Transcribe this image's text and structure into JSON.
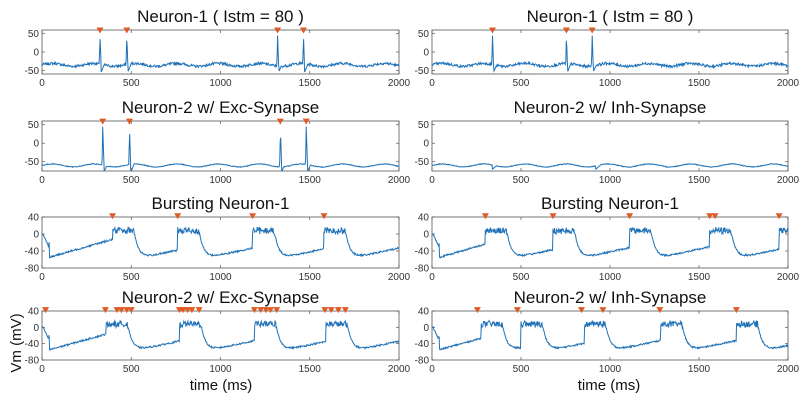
{
  "figure": {
    "ylabel": "Vm (mV)",
    "xlabel_left": "time (ms)",
    "xlabel_right": "time (ms)"
  },
  "colors": {
    "trace": "#1f72b8",
    "marker": "#e05a23",
    "axis": "#555555"
  },
  "chart_data": [
    {
      "type": "line",
      "title": "Neuron-1 ( Istm = 80 )",
      "xlim": [
        0,
        2000
      ],
      "ylim": [
        -60,
        60
      ],
      "xticks": [
        "0",
        "500",
        "1000",
        "1500",
        "2000"
      ],
      "yticks": [
        "50",
        "0",
        "-50"
      ],
      "ytick_values": [
        50,
        0,
        -50
      ],
      "baseline": -35,
      "spike_peak": 45,
      "spike_times": [
        325,
        475,
        1320,
        1465
      ]
    },
    {
      "type": "line",
      "title": "Neuron-1 ( Istm = 80 )",
      "xlim": [
        0,
        2000
      ],
      "ylim": [
        -60,
        60
      ],
      "xticks": [
        "0",
        "500",
        "1000",
        "1500",
        "2000"
      ],
      "yticks": [
        "50",
        "0",
        "-50"
      ],
      "ytick_values": [
        50,
        0,
        -50
      ],
      "baseline": -35,
      "spike_times": [
        340,
        755,
        900
      ]
    },
    {
      "type": "line",
      "title": "Neuron-2 w/ Exc-Synapse",
      "xlim": [
        0,
        2000
      ],
      "ylim": [
        -75,
        60
      ],
      "xticks": [
        "0",
        "500",
        "1000",
        "1500",
        "2000"
      ],
      "yticks": [
        "50",
        "0",
        "-50"
      ],
      "ytick_values": [
        50,
        0,
        -50
      ],
      "baseline": -60,
      "spike_times": [
        340,
        490,
        1335,
        1480
      ]
    },
    {
      "type": "line",
      "title": "Neuron-2 w/ Inh-Synapse",
      "xlim": [
        0,
        2000
      ],
      "ylim": [
        -75,
        60
      ],
      "xticks": [
        "0",
        "500",
        "1000",
        "1500",
        "2000"
      ],
      "yticks": [
        "50",
        "0",
        "-50"
      ],
      "ytick_values": [
        50,
        0,
        -50
      ],
      "baseline": -60,
      "spike_times": [],
      "dip_times": [
        340,
        920
      ]
    },
    {
      "type": "line",
      "title": "Bursting Neuron-1",
      "xlim": [
        0,
        2000
      ],
      "ylim": [
        -80,
        40
      ],
      "xticks": [
        "0",
        "500",
        "1000",
        "1500",
        "2000"
      ],
      "yticks": [
        "40",
        "0",
        "-40",
        "-80"
      ],
      "ytick_values": [
        40,
        0,
        -40,
        -80
      ],
      "burst_starts": [
        395,
        760,
        1180,
        1580
      ],
      "spike_times": [
        395,
        760,
        1180,
        1580
      ]
    },
    {
      "type": "line",
      "title": "Bursting Neuron-1",
      "xlim": [
        0,
        2000
      ],
      "ylim": [
        -80,
        40
      ],
      "xticks": [
        "0",
        "500",
        "1000",
        "1500",
        "2000"
      ],
      "yticks": [
        "40",
        "0",
        "-40",
        "-80"
      ],
      "ytick_values": [
        40,
        0,
        -40,
        -80
      ],
      "burst_starts": [
        300,
        680,
        1110,
        1560,
        1950
      ],
      "spike_times": [
        300,
        680,
        1110,
        1560,
        1590,
        1950
      ]
    },
    {
      "type": "line",
      "title": "Neuron-2 w/ Exc-Synapse",
      "xlim": [
        0,
        2000
      ],
      "ylim": [
        -80,
        40
      ],
      "xticks": [
        "0",
        "500",
        "1000",
        "1500",
        "2000"
      ],
      "yticks": [
        "40",
        "0",
        "-40",
        "-80"
      ],
      "ytick_values": [
        40,
        0,
        -40,
        -80
      ],
      "burst_starts": [
        360,
        770,
        1190,
        1590
      ],
      "spike_times": [
        20,
        355,
        420,
        445,
        475,
        500,
        770,
        790,
        815,
        840,
        880,
        1190,
        1225,
        1255,
        1280,
        1315,
        1585,
        1620,
        1660,
        1700
      ]
    },
    {
      "type": "line",
      "title": "Neuron-2 w/ Inh-Synapse",
      "xlim": [
        0,
        2000
      ],
      "ylim": [
        -80,
        40
      ],
      "xticks": [
        "0",
        "500",
        "1000",
        "1500",
        "2000"
      ],
      "yticks": [
        "40",
        "0",
        "-40",
        "-80"
      ],
      "ytick_values": [
        40,
        0,
        -40,
        -80
      ],
      "burst_starts": [
        275,
        500,
        855,
        1285,
        1710
      ],
      "spike_times": [
        255,
        480,
        840,
        960,
        1280,
        1710
      ]
    }
  ]
}
